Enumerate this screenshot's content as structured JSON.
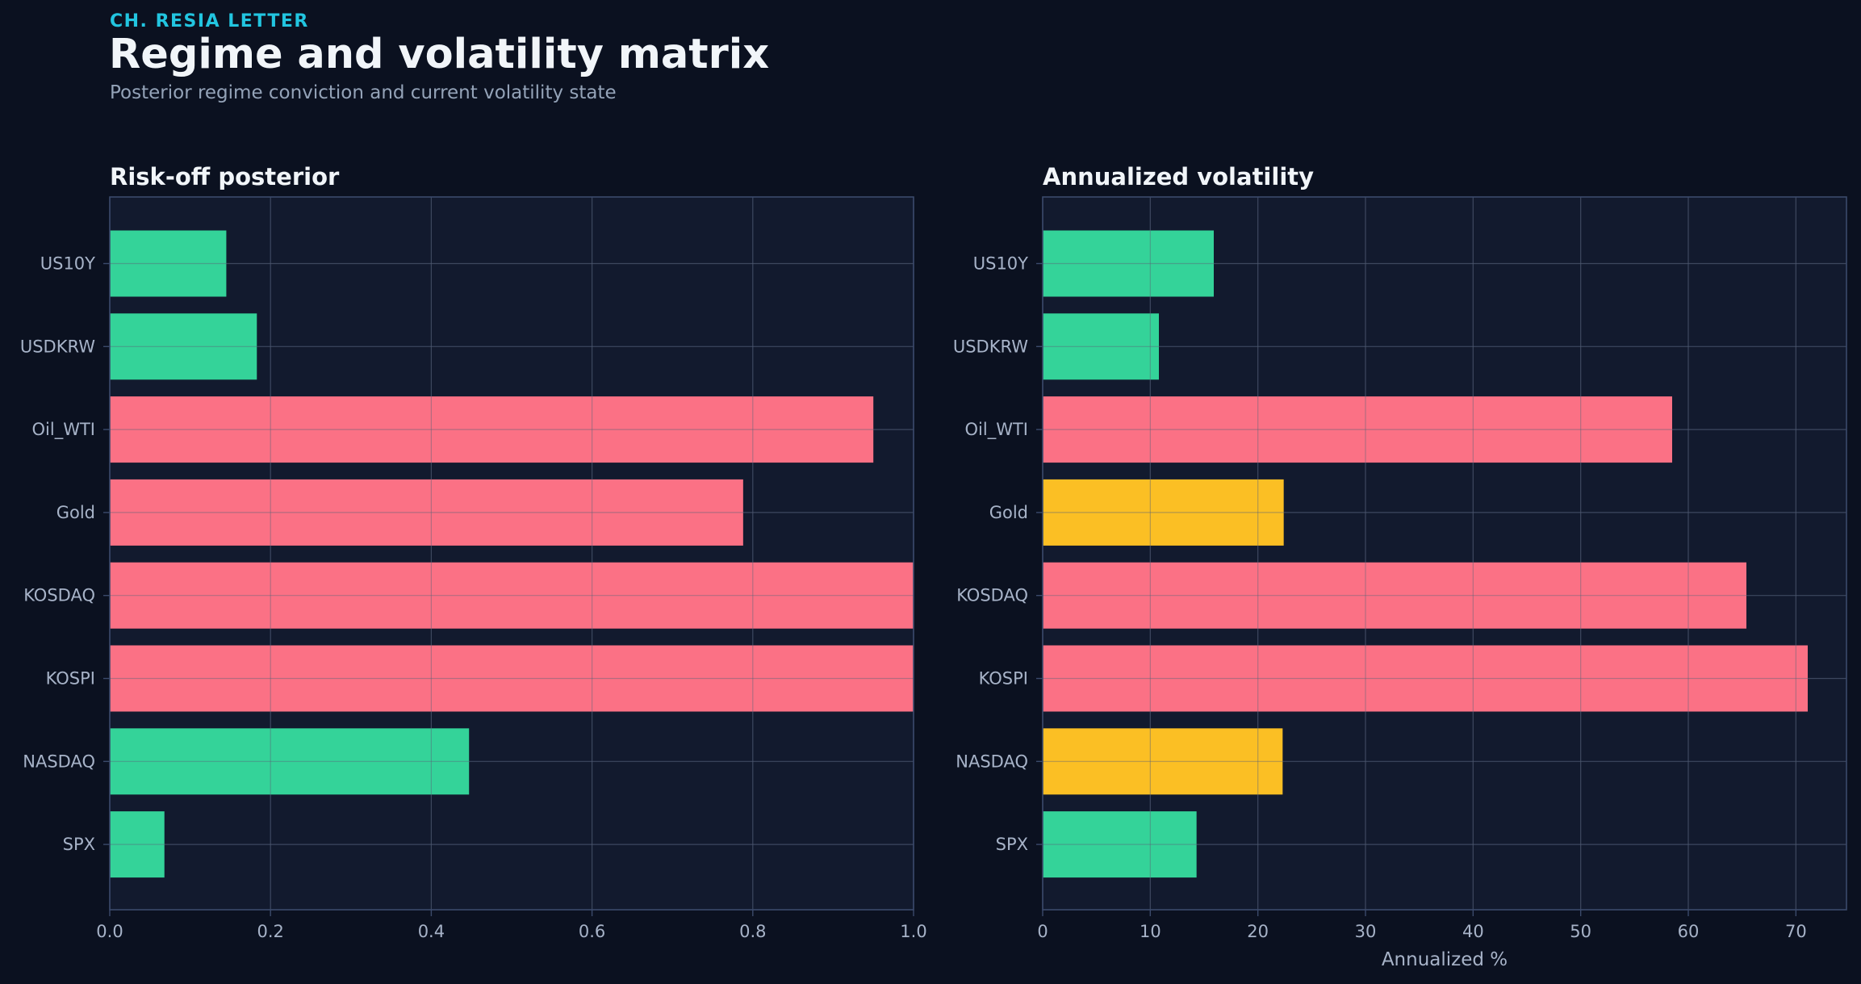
{
  "header": {
    "eyebrow": "CH. RESIA LETTER",
    "title": "Regime and volatility matrix",
    "subtitle": "Posterior regime conviction and current volatility state"
  },
  "colors": {
    "background": "#0b1120",
    "panel": "#121a2e",
    "grid": "#24304a",
    "frame": "#3b4a6b",
    "eyebrow": "#22c5e0",
    "green": "#34d399",
    "red": "#fb7185",
    "amber": "#fbbf24"
  },
  "chart_data": [
    {
      "type": "bar",
      "orientation": "horizontal",
      "title": "Risk-off posterior",
      "xlabel": "",
      "ylabel": "",
      "categories": [
        "US10Y",
        "USDKRW",
        "Oil_WTI",
        "Gold",
        "KOSDAQ",
        "KOSPI",
        "NASDAQ",
        "SPX"
      ],
      "values": [
        0.145,
        0.183,
        0.95,
        0.788,
        1.0,
        1.0,
        0.447,
        0.068
      ],
      "colors": [
        "green",
        "green",
        "red",
        "red",
        "red",
        "red",
        "green",
        "green"
      ],
      "xlim": [
        0,
        1.0
      ],
      "xticks": [
        "0.0",
        "0.2",
        "0.4",
        "0.6",
        "0.8",
        "1.0"
      ],
      "xtick_values": [
        0,
        0.2,
        0.4,
        0.6,
        0.8,
        1.0
      ],
      "grid": true
    },
    {
      "type": "bar",
      "orientation": "horizontal",
      "title": "Annualized volatility",
      "xlabel": "Annualized %",
      "ylabel": "",
      "categories": [
        "US10Y",
        "USDKRW",
        "Oil_WTI",
        "Gold",
        "KOSDAQ",
        "KOSPI",
        "NASDAQ",
        "SPX"
      ],
      "values": [
        15.9,
        10.8,
        58.5,
        22.4,
        65.4,
        71.1,
        22.3,
        14.3
      ],
      "colors": [
        "green",
        "green",
        "red",
        "amber",
        "red",
        "red",
        "amber",
        "green"
      ],
      "xlim": [
        0,
        74.7
      ],
      "xticks": [
        "0",
        "10",
        "20",
        "30",
        "40",
        "50",
        "60",
        "70"
      ],
      "xtick_values": [
        0,
        10,
        20,
        30,
        40,
        50,
        60,
        70
      ],
      "grid": true
    }
  ]
}
